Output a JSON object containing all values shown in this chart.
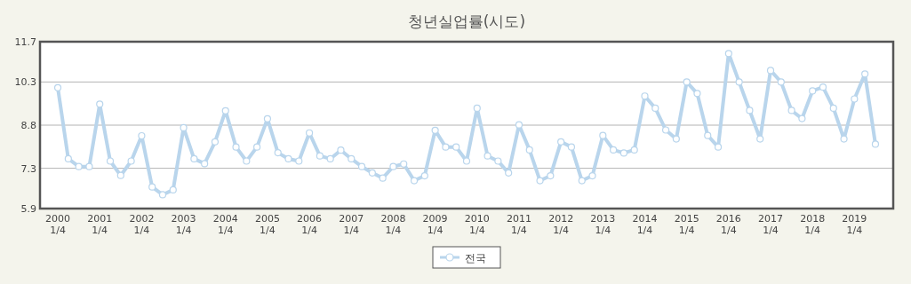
{
  "chart_data": {
    "type": "line",
    "title": "청년실업률(시도)",
    "categories": [
      "2000\n1/4",
      null,
      null,
      null,
      "2001\n1/4",
      null,
      null,
      null,
      "2002\n1/4",
      null,
      null,
      null,
      "2003\n1/4",
      null,
      null,
      null,
      "2004\n1/4",
      null,
      null,
      null,
      "2005\n1/4",
      null,
      null,
      null,
      "2006\n1/4",
      null,
      null,
      null,
      "2007\n1/4",
      null,
      null,
      null,
      "2008\n1/4",
      null,
      null,
      null,
      "2009\n1/4",
      null,
      null,
      null,
      "2010\n1/4",
      null,
      null,
      null,
      "2011\n1/4",
      null,
      null,
      null,
      "2012\n1/4",
      null,
      null,
      null,
      "2013\n1/4",
      null,
      null,
      null,
      "2014\n1/4",
      null,
      null,
      null,
      "2015\n1/4",
      null,
      null,
      null,
      "2016\n1/4",
      null,
      null,
      null,
      "2017\n1/4",
      null,
      null,
      null,
      "2018\n1/4",
      null,
      null,
      null,
      "2019\n1/4",
      null,
      null
    ],
    "series": [
      {
        "name": "전국",
        "color": "#b9d5ec",
        "values": [
          10.1,
          7.63,
          7.36,
          7.36,
          9.53,
          7.55,
          7.05,
          7.55,
          8.43,
          6.65,
          6.38,
          6.55,
          8.71,
          7.63,
          7.46,
          8.22,
          9.3,
          8.04,
          7.55,
          8.04,
          9.02,
          7.84,
          7.63,
          7.55,
          8.53,
          7.73,
          7.63,
          7.93,
          7.63,
          7.36,
          7.14,
          6.96,
          7.36,
          7.45,
          6.87,
          7.04,
          8.62,
          8.04,
          8.04,
          7.55,
          9.39,
          7.73,
          7.55,
          7.14,
          8.81,
          7.94,
          6.87,
          7.04,
          8.22,
          8.04,
          6.87,
          7.04,
          8.44,
          7.94,
          7.83,
          7.94,
          9.81,
          9.39,
          8.63,
          8.32,
          10.3,
          9.9,
          8.44,
          8.04,
          11.29,
          10.3,
          9.31,
          8.32,
          10.7,
          10.3,
          9.31,
          9.03,
          9.99,
          10.12,
          9.39,
          8.32,
          9.71,
          10.58,
          8.14
        ]
      }
    ],
    "ylim": [
      5.9,
      11.7
    ],
    "yticks": [
      5.9,
      7.3,
      8.8,
      10.3,
      11.7
    ],
    "grid": "y",
    "legend": "bottom",
    "marker": "circle",
    "line_style": "solid"
  }
}
